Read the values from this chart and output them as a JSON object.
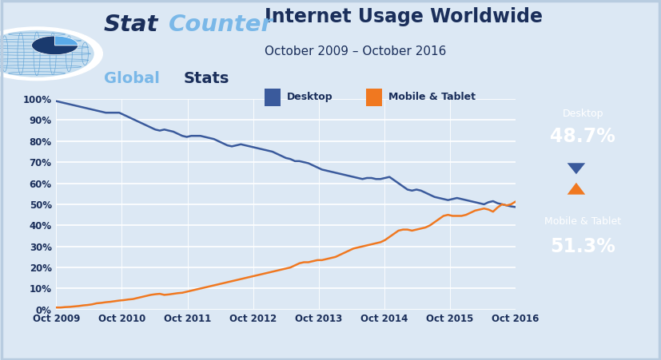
{
  "title": "Internet Usage Worldwide",
  "subtitle": "October 2009 – October 2016",
  "legend_desktop": "Desktop",
  "legend_mobile": "Mobile & Tablet",
  "desktop_color": "#3a5a9c",
  "mobile_color": "#f07820",
  "bg_color": "#e8f0f8",
  "plot_bg": "#dce8f4",
  "outer_bg": "#dce8f4",
  "title_color": "#1a2e5a",
  "desktop_box_color": "#3a5a9c",
  "mobile_box_color": "#f07820",
  "x_ticks": [
    "Oct 2009",
    "Oct 2010",
    "Oct 2011",
    "Oct 2012",
    "Oct 2013",
    "Oct 2014",
    "Oct 2015",
    "Oct 2016"
  ],
  "y_ticks": [
    0,
    10,
    20,
    30,
    40,
    50,
    60,
    70,
    80,
    90,
    100
  ],
  "desktop_data": [
    99.0,
    98.5,
    98.0,
    97.5,
    97.0,
    96.5,
    96.0,
    95.5,
    95.0,
    94.5,
    94.0,
    93.5,
    93.5,
    93.5,
    93.5,
    92.5,
    91.5,
    90.5,
    89.5,
    88.5,
    87.5,
    86.5,
    85.5,
    85.0,
    85.5,
    85.0,
    84.5,
    83.5,
    82.5,
    82.0,
    82.5,
    82.5,
    82.5,
    82.0,
    81.5,
    81.0,
    80.0,
    79.0,
    78.0,
    77.5,
    78.0,
    78.5,
    78.0,
    77.5,
    77.0,
    76.5,
    76.0,
    75.5,
    75.0,
    74.0,
    73.0,
    72.0,
    71.5,
    70.5,
    70.5,
    70.0,
    69.5,
    68.5,
    67.5,
    66.5,
    66.0,
    65.5,
    65.0,
    64.5,
    64.0,
    63.5,
    63.0,
    62.5,
    62.0,
    62.5,
    62.5,
    62.0,
    62.0,
    62.5,
    63.0,
    61.5,
    60.0,
    58.5,
    57.0,
    56.5,
    57.0,
    56.5,
    55.5,
    54.5,
    53.5,
    53.0,
    52.5,
    52.0,
    52.5,
    53.0,
    52.5,
    52.0,
    51.5,
    51.0,
    50.5,
    50.0,
    51.0,
    51.5,
    50.5,
    50.0,
    49.5,
    49.0,
    48.7
  ],
  "mobile_data": [
    1.0,
    1.0,
    1.2,
    1.3,
    1.5,
    1.7,
    2.0,
    2.2,
    2.5,
    3.0,
    3.2,
    3.5,
    3.7,
    4.0,
    4.3,
    4.5,
    4.8,
    5.0,
    5.5,
    6.0,
    6.5,
    7.0,
    7.3,
    7.5,
    7.0,
    7.2,
    7.5,
    7.8,
    8.0,
    8.5,
    9.0,
    9.5,
    10.0,
    10.5,
    11.0,
    11.5,
    12.0,
    12.5,
    13.0,
    13.5,
    14.0,
    14.5,
    15.0,
    15.5,
    16.0,
    16.5,
    17.0,
    17.5,
    18.0,
    18.5,
    19.0,
    19.5,
    20.0,
    21.0,
    22.0,
    22.5,
    22.5,
    23.0,
    23.5,
    23.5,
    24.0,
    24.5,
    25.0,
    26.0,
    27.0,
    28.0,
    29.0,
    29.5,
    30.0,
    30.5,
    31.0,
    31.5,
    32.0,
    33.0,
    34.5,
    36.0,
    37.5,
    38.0,
    38.0,
    37.5,
    38.0,
    38.5,
    39.0,
    40.0,
    41.5,
    43.0,
    44.5,
    45.0,
    44.5,
    44.5,
    44.5,
    45.0,
    46.0,
    47.0,
    47.5,
    48.0,
    47.5,
    46.5,
    48.5,
    50.0,
    49.5,
    50.0,
    51.3
  ]
}
